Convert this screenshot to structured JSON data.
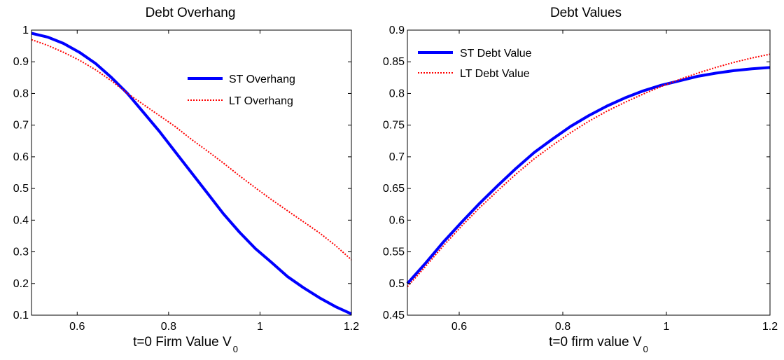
{
  "chart_data": [
    {
      "type": "line",
      "title": "Debt Overhang",
      "xlabel": "t=0 Firm Value V",
      "xlabel_subscript": "0",
      "ylabel": "",
      "xlim": [
        0.5,
        1.2
      ],
      "ylim": [
        0.1,
        1.0
      ],
      "xticks": [
        0.6,
        0.8,
        1,
        1.2
      ],
      "xtick_labels": [
        "0.6",
        "0.8",
        "1",
        "1.2"
      ],
      "yticks": [
        0.1,
        0.2,
        0.3,
        0.4,
        0.5,
        0.6,
        0.7,
        0.8,
        0.9,
        1.0
      ],
      "ytick_labels": [
        "0.1",
        "0.2",
        "0.3",
        "0.4",
        "0.5",
        "0.6",
        "0.7",
        "0.8",
        "0.9",
        "1"
      ],
      "grid": false,
      "legend_position": "top-right",
      "series": [
        {
          "name": "ST Overhang",
          "style": "solid",
          "color": "#0000ff",
          "x": [
            0.5,
            0.535,
            0.57,
            0.605,
            0.64,
            0.675,
            0.71,
            0.745,
            0.78,
            0.815,
            0.85,
            0.885,
            0.92,
            0.955,
            0.99,
            1.025,
            1.06,
            1.095,
            1.13,
            1.165,
            1.2
          ],
          "y": [
            0.99,
            0.978,
            0.958,
            0.93,
            0.895,
            0.85,
            0.8,
            0.74,
            0.68,
            0.615,
            0.55,
            0.485,
            0.42,
            0.362,
            0.31,
            0.267,
            0.222,
            0.187,
            0.155,
            0.127,
            0.104
          ]
        },
        {
          "name": "LT Overhang",
          "style": "dotted",
          "color": "#ff0000",
          "x": [
            0.5,
            0.535,
            0.57,
            0.605,
            0.64,
            0.675,
            0.71,
            0.745,
            0.78,
            0.815,
            0.85,
            0.885,
            0.92,
            0.955,
            0.99,
            1.025,
            1.06,
            1.095,
            1.13,
            1.165,
            1.2
          ],
          "y": [
            0.97,
            0.952,
            0.93,
            0.905,
            0.875,
            0.84,
            0.8,
            0.765,
            0.73,
            0.695,
            0.655,
            0.618,
            0.58,
            0.54,
            0.502,
            0.465,
            0.43,
            0.395,
            0.36,
            0.32,
            0.275
          ]
        }
      ]
    },
    {
      "type": "line",
      "title": "Debt Values",
      "xlabel": "t=0 firm value V",
      "xlabel_subscript": "0",
      "ylabel": "",
      "xlim": [
        0.5,
        1.2
      ],
      "ylim": [
        0.45,
        0.9
      ],
      "xticks": [
        0.6,
        0.8,
        1,
        1.2
      ],
      "xtick_labels": [
        "0.6",
        "0.8",
        "1",
        "1.2"
      ],
      "yticks": [
        0.45,
        0.5,
        0.55,
        0.6,
        0.65,
        0.7,
        0.75,
        0.8,
        0.85,
        0.9
      ],
      "ytick_labels": [
        "0.45",
        "0.5",
        "0.55",
        "0.6",
        "0.65",
        "0.7",
        "0.75",
        "0.8",
        "0.85",
        "0.9"
      ],
      "grid": false,
      "legend_position": "top-left",
      "series": [
        {
          "name": "ST Debt Value",
          "style": "solid",
          "color": "#0000ff",
          "x": [
            0.5,
            0.535,
            0.57,
            0.605,
            0.64,
            0.675,
            0.71,
            0.745,
            0.78,
            0.815,
            0.85,
            0.885,
            0.92,
            0.955,
            0.99,
            1.025,
            1.06,
            1.095,
            1.13,
            1.165,
            1.2
          ],
          "y": [
            0.5,
            0.532,
            0.566,
            0.597,
            0.627,
            0.655,
            0.682,
            0.707,
            0.728,
            0.748,
            0.765,
            0.78,
            0.793,
            0.804,
            0.813,
            0.82,
            0.827,
            0.832,
            0.836,
            0.839,
            0.841
          ]
        },
        {
          "name": "LT Debt Value",
          "style": "dotted",
          "color": "#ff0000",
          "x": [
            0.5,
            0.535,
            0.57,
            0.605,
            0.64,
            0.675,
            0.71,
            0.745,
            0.78,
            0.815,
            0.85,
            0.885,
            0.92,
            0.955,
            0.99,
            1.025,
            1.06,
            1.095,
            1.13,
            1.165,
            1.2
          ],
          "y": [
            0.495,
            0.527,
            0.56,
            0.591,
            0.62,
            0.647,
            0.673,
            0.697,
            0.718,
            0.738,
            0.756,
            0.772,
            0.786,
            0.799,
            0.811,
            0.822,
            0.832,
            0.841,
            0.849,
            0.856,
            0.862
          ]
        }
      ]
    }
  ]
}
